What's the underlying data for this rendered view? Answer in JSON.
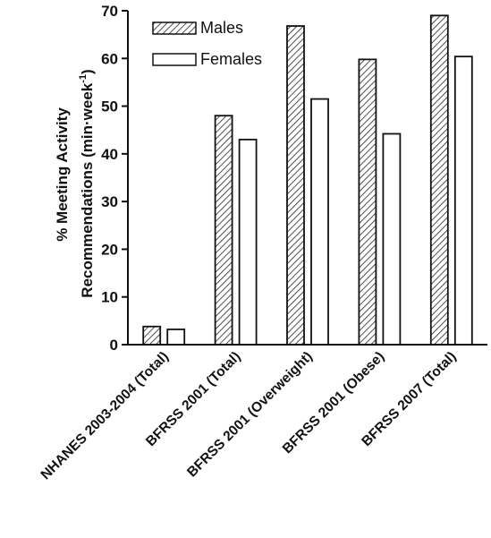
{
  "chart_data": {
    "type": "bar",
    "categories": [
      "NHANES 2003-2004 (Total)",
      "BFRSS 2001 (Total)",
      "BFRSS 2001 (Overweight)",
      "BFRSS 2001 (Obese)",
      "BFRSS 2007 (Total)"
    ],
    "series": [
      {
        "name": "Males",
        "values": [
          3.8,
          48.0,
          66.8,
          59.8,
          69.0
        ],
        "pattern": "hatched"
      },
      {
        "name": "Females",
        "values": [
          3.2,
          43.0,
          51.5,
          44.2,
          60.4
        ],
        "pattern": "white"
      }
    ],
    "ylabel_line1": "% Meeting Activity",
    "ylabel_line2_prefix": "Recommendations (min·week",
    "ylabel_line2_sup": "-1",
    "ylabel_line2_suffix": ")",
    "ylim": [
      0,
      70
    ],
    "yticks": [
      0,
      10,
      20,
      30,
      40,
      50,
      60,
      70
    ],
    "grid": false,
    "legend_position": "top-left"
  }
}
